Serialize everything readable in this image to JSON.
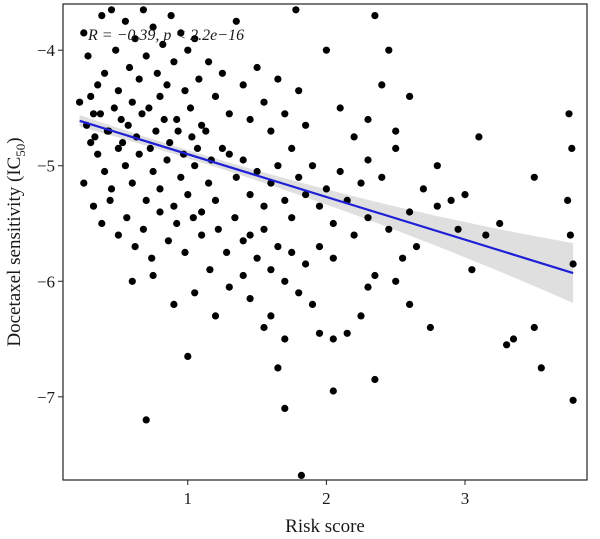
{
  "chart_data": {
    "type": "scatter",
    "xlabel": "Risk score",
    "ylabel_main": "Docetaxel sensitivity (IC",
    "ylabel_sub": "50",
    "ylabel_close": ")",
    "annotation": "R = −0.39, p < 2.2e−16",
    "xlim": [
      0.1,
      3.88
    ],
    "ylim": [
      -7.72,
      -3.6
    ],
    "xticks": [
      1,
      2,
      3
    ],
    "yticks": [
      -7,
      -6,
      -5,
      -4
    ],
    "ytick_labels": [
      "−7",
      "−6",
      "−5",
      "−4"
    ],
    "grid": false,
    "point_color": "#000000",
    "line_color": "#1f1fd6",
    "band_color": "#d9d9d9",
    "regression": {
      "slope": -0.37,
      "intercept": -4.53,
      "x_range": [
        0.22,
        3.78
      ]
    },
    "points": [
      [
        0.25,
        -3.85
      ],
      [
        0.28,
        -4.05
      ],
      [
        0.3,
        -4.4
      ],
      [
        0.32,
        -4.55
      ],
      [
        0.35,
        -4.3
      ],
      [
        0.38,
        -3.7
      ],
      [
        0.4,
        -4.2
      ],
      [
        0.42,
        -4.7
      ],
      [
        0.45,
        -3.65
      ],
      [
        0.48,
        -4.0
      ],
      [
        0.5,
        -4.35
      ],
      [
        0.52,
        -4.6
      ],
      [
        0.55,
        -3.75
      ],
      [
        0.58,
        -4.15
      ],
      [
        0.6,
        -4.45
      ],
      [
        0.62,
        -3.9
      ],
      [
        0.65,
        -4.25
      ],
      [
        0.68,
        -3.65
      ],
      [
        0.7,
        -4.05
      ],
      [
        0.72,
        -4.5
      ],
      [
        0.75,
        -3.8
      ],
      [
        0.78,
        -4.2
      ],
      [
        0.8,
        -4.4
      ],
      [
        0.82,
        -3.95
      ],
      [
        0.85,
        -4.3
      ],
      [
        0.88,
        -3.7
      ],
      [
        0.9,
        -4.1
      ],
      [
        0.92,
        -4.6
      ],
      [
        0.95,
        -3.85
      ],
      [
        0.98,
        -4.35
      ],
      [
        1.0,
        -4.0
      ],
      [
        1.02,
        -4.5
      ],
      [
        1.05,
        -3.9
      ],
      [
        1.08,
        -4.25
      ],
      [
        1.1,
        -4.65
      ],
      [
        1.15,
        -4.1
      ],
      [
        1.2,
        -4.4
      ],
      [
        1.25,
        -4.2
      ],
      [
        1.3,
        -4.55
      ],
      [
        1.35,
        -3.75
      ],
      [
        0.3,
        -4.8
      ],
      [
        0.35,
        -4.9
      ],
      [
        0.4,
        -5.05
      ],
      [
        0.45,
        -5.2
      ],
      [
        0.5,
        -4.85
      ],
      [
        0.55,
        -5.0
      ],
      [
        0.6,
        -5.15
      ],
      [
        0.65,
        -4.9
      ],
      [
        0.7,
        -5.3
      ],
      [
        0.75,
        -5.05
      ],
      [
        0.8,
        -5.2
      ],
      [
        0.85,
        -4.95
      ],
      [
        0.9,
        -5.35
      ],
      [
        0.95,
        -5.1
      ],
      [
        1.0,
        -5.25
      ],
      [
        1.05,
        -5.0
      ],
      [
        1.1,
        -5.4
      ],
      [
        1.15,
        -5.15
      ],
      [
        1.2,
        -5.3
      ],
      [
        1.25,
        -4.85
      ],
      [
        0.25,
        -5.15
      ],
      [
        0.32,
        -5.35
      ],
      [
        0.38,
        -5.5
      ],
      [
        0.44,
        -5.3
      ],
      [
        0.5,
        -5.6
      ],
      [
        0.56,
        -5.45
      ],
      [
        0.62,
        -5.7
      ],
      [
        0.68,
        -5.55
      ],
      [
        0.74,
        -5.8
      ],
      [
        0.8,
        -5.4
      ],
      [
        0.86,
        -5.65
      ],
      [
        0.92,
        -5.5
      ],
      [
        0.98,
        -5.75
      ],
      [
        1.04,
        -5.45
      ],
      [
        1.1,
        -5.6
      ],
      [
        1.16,
        -5.9
      ],
      [
        1.22,
        -5.55
      ],
      [
        1.28,
        -5.75
      ],
      [
        1.34,
        -5.45
      ],
      [
        1.4,
        -5.65
      ],
      [
        0.22,
        -4.45
      ],
      [
        0.27,
        -4.65
      ],
      [
        0.33,
        -4.75
      ],
      [
        0.37,
        -4.55
      ],
      [
        0.43,
        -4.7
      ],
      [
        0.47,
        -4.5
      ],
      [
        0.53,
        -4.8
      ],
      [
        0.57,
        -4.65
      ],
      [
        0.63,
        -4.75
      ],
      [
        0.67,
        -4.55
      ],
      [
        0.73,
        -4.85
      ],
      [
        0.77,
        -4.7
      ],
      [
        0.83,
        -4.6
      ],
      [
        0.87,
        -4.8
      ],
      [
        0.93,
        -4.7
      ],
      [
        0.97,
        -4.9
      ],
      [
        1.03,
        -4.75
      ],
      [
        1.07,
        -4.85
      ],
      [
        1.13,
        -4.7
      ],
      [
        1.17,
        -4.95
      ],
      [
        1.4,
        -4.3
      ],
      [
        1.45,
        -4.6
      ],
      [
        1.5,
        -4.15
      ],
      [
        1.55,
        -4.45
      ],
      [
        1.6,
        -4.7
      ],
      [
        1.65,
        -4.25
      ],
      [
        1.7,
        -4.55
      ],
      [
        1.75,
        -4.85
      ],
      [
        1.8,
        -4.35
      ],
      [
        1.85,
        -4.65
      ],
      [
        1.3,
        -4.9
      ],
      [
        1.35,
        -5.1
      ],
      [
        1.4,
        -4.95
      ],
      [
        1.45,
        -5.25
      ],
      [
        1.5,
        -5.05
      ],
      [
        1.55,
        -5.35
      ],
      [
        1.6,
        -5.15
      ],
      [
        1.65,
        -5.0
      ],
      [
        1.7,
        -5.3
      ],
      [
        1.75,
        -5.45
      ],
      [
        1.8,
        -5.1
      ],
      [
        1.85,
        -5.25
      ],
      [
        1.9,
        -5.0
      ],
      [
        1.95,
        -5.35
      ],
      [
        2.0,
        -5.2
      ],
      [
        2.05,
        -5.5
      ],
      [
        2.1,
        -5.05
      ],
      [
        2.15,
        -5.3
      ],
      [
        2.2,
        -5.6
      ],
      [
        2.25,
        -5.15
      ],
      [
        1.45,
        -5.6
      ],
      [
        1.5,
        -5.8
      ],
      [
        1.55,
        -5.55
      ],
      [
        1.6,
        -5.9
      ],
      [
        1.65,
        -5.7
      ],
      [
        1.7,
        -6.0
      ],
      [
        1.75,
        -5.75
      ],
      [
        1.8,
        -6.1
      ],
      [
        1.85,
        -5.85
      ],
      [
        1.9,
        -6.2
      ],
      [
        0.6,
        -6.0
      ],
      [
        0.75,
        -5.95
      ],
      [
        0.9,
        -6.2
      ],
      [
        1.05,
        -6.1
      ],
      [
        1.2,
        -6.3
      ],
      [
        1.3,
        -6.05
      ],
      [
        1.45,
        -6.15
      ],
      [
        1.55,
        -6.4
      ],
      [
        1.7,
        -6.5
      ],
      [
        1.95,
        -6.45
      ],
      [
        2.05,
        -6.5
      ],
      [
        2.15,
        -6.45
      ],
      [
        2.3,
        -6.05
      ],
      [
        2.5,
        -6.0
      ],
      [
        2.6,
        -6.2
      ],
      [
        2.75,
        -6.4
      ],
      [
        3.3,
        -6.55
      ],
      [
        3.35,
        -6.5
      ],
      [
        3.5,
        -6.4
      ],
      [
        3.55,
        -6.75
      ],
      [
        1.0,
        -6.65
      ],
      [
        1.65,
        -6.75
      ],
      [
        1.7,
        -7.1
      ],
      [
        2.05,
        -6.95
      ],
      [
        2.35,
        -6.85
      ],
      [
        0.7,
        -7.2
      ],
      [
        1.82,
        -7.68
      ],
      [
        3.78,
        -7.03
      ],
      [
        2.0,
        -4.0
      ],
      [
        2.1,
        -4.5
      ],
      [
        2.2,
        -4.75
      ],
      [
        2.3,
        -4.6
      ],
      [
        2.35,
        -3.7
      ],
      [
        2.4,
        -4.3
      ],
      [
        2.45,
        -4.0
      ],
      [
        2.5,
        -4.7
      ],
      [
        2.6,
        -4.4
      ],
      [
        1.78,
        -3.65
      ],
      [
        2.3,
        -4.95
      ],
      [
        2.4,
        -5.1
      ],
      [
        2.5,
        -4.85
      ],
      [
        2.6,
        -5.4
      ],
      [
        2.7,
        -5.2
      ],
      [
        2.8,
        -5.0
      ],
      [
        2.9,
        -5.3
      ],
      [
        3.0,
        -5.25
      ],
      [
        3.1,
        -4.75
      ],
      [
        3.15,
        -5.6
      ],
      [
        2.3,
        -5.45
      ],
      [
        2.45,
        -5.55
      ],
      [
        2.55,
        -5.8
      ],
      [
        2.65,
        -5.7
      ],
      [
        2.8,
        -5.35
      ],
      [
        2.95,
        -5.55
      ],
      [
        3.05,
        -5.9
      ],
      [
        3.25,
        -5.5
      ],
      [
        3.5,
        -5.1
      ],
      [
        3.75,
        -4.55
      ],
      [
        3.77,
        -4.85
      ],
      [
        3.74,
        -5.3
      ],
      [
        3.76,
        -5.6
      ],
      [
        3.78,
        -5.85
      ],
      [
        2.35,
        -5.95
      ],
      [
        1.95,
        -5.7
      ],
      [
        2.05,
        -5.8
      ],
      [
        2.25,
        -6.3
      ],
      [
        1.6,
        -6.3
      ],
      [
        1.4,
        -5.95
      ]
    ]
  }
}
